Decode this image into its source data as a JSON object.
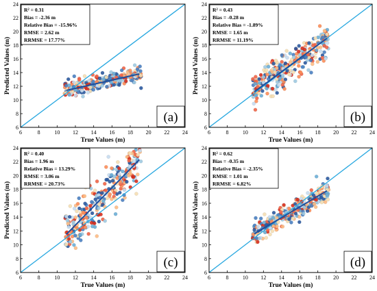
{
  "chart_data": [
    {
      "type": "scatter",
      "panel_label": "(a)",
      "xlabel": "True Values (m)",
      "ylabel": "Predicted Values (m)",
      "xlim": [
        6,
        24
      ],
      "ylim": [
        6,
        24
      ],
      "xticks": [
        "6",
        "8",
        "10",
        "12",
        "14",
        "16",
        "18",
        "20",
        "22",
        "24"
      ],
      "yticks": [
        "6",
        "8",
        "10",
        "12",
        "14",
        "16",
        "18",
        "20",
        "22",
        "24"
      ],
      "stats": [
        "R² = 0.31",
        "Bias = -2.36 m",
        "Relative Bias = -15.96%",
        "RMSE = 2.62 m",
        "RRMSE = 17.77%"
      ],
      "one_to_one": [
        [
          6,
          6
        ],
        [
          24,
          24
        ]
      ],
      "fit_line": [
        [
          11,
          11.4
        ],
        [
          19,
          13.8
        ]
      ],
      "point_cloud": {
        "x_range": [
          10.8,
          19.2
        ],
        "y_center": [
          11.4,
          13.8
        ],
        "y_spread": 1.4,
        "count": 300
      }
    },
    {
      "type": "scatter",
      "panel_label": "(b)",
      "xlabel": "True Values (m)",
      "ylabel": "Predicted Values (m)",
      "xlim": [
        6,
        24
      ],
      "ylim": [
        6,
        24
      ],
      "xticks": [
        "6",
        "8",
        "10",
        "12",
        "14",
        "16",
        "18",
        "20",
        "22",
        "24"
      ],
      "yticks": [
        "6",
        "8",
        "10",
        "12",
        "14",
        "16",
        "18",
        "20",
        "22",
        "24"
      ],
      "stats": [
        "R² = 0.43",
        "Bias = -0.28 m",
        "Relative Bias = -1.89%",
        "RMSE = 1.65 m",
        "RRMSE = 11.19%"
      ],
      "one_to_one": [
        [
          6,
          6
        ],
        [
          24,
          24
        ]
      ],
      "fit_line": [
        [
          11,
          11.2
        ],
        [
          19,
          19
        ]
      ],
      "point_cloud": {
        "x_range": [
          10.8,
          19.2
        ],
        "y_center": [
          11.2,
          19.0
        ],
        "y_spread": 3.0,
        "count": 300
      }
    },
    {
      "type": "scatter",
      "panel_label": "(c)",
      "xlabel": "True Values (m)",
      "ylabel": "Predicted Values (m)",
      "xlim": [
        6,
        24
      ],
      "ylim": [
        6,
        24
      ],
      "xticks": [
        "6",
        "8",
        "10",
        "12",
        "14",
        "16",
        "18",
        "20",
        "22",
        "24"
      ],
      "yticks": [
        "6",
        "8",
        "10",
        "12",
        "14",
        "16",
        "18",
        "20",
        "22",
        "24"
      ],
      "stats": [
        "R² = 0.40",
        "Bias = 1.96 m",
        "Relative Bias = 13.29%",
        "RMSE = 3.06 m",
        "RRMSE = 20.73%"
      ],
      "one_to_one": [
        [
          6,
          6
        ],
        [
          24,
          24
        ]
      ],
      "fit_line": [
        [
          11,
          11.5
        ],
        [
          19,
          22.3
        ]
      ],
      "point_cloud": {
        "x_range": [
          10.8,
          19.2
        ],
        "y_center": [
          11.5,
          22.3
        ],
        "y_spread": 4.0,
        "count": 300
      }
    },
    {
      "type": "scatter",
      "panel_label": "(d)",
      "xlabel": "True Values (m)",
      "ylabel": "Predicted Values (m)",
      "xlim": [
        6,
        24
      ],
      "ylim": [
        6,
        24
      ],
      "xticks": [
        "6",
        "8",
        "10",
        "12",
        "14",
        "16",
        "18",
        "20",
        "22",
        "24"
      ],
      "yticks": [
        "6",
        "8",
        "10",
        "12",
        "14",
        "16",
        "18",
        "20",
        "22",
        "24"
      ],
      "stats": [
        "R² = 0.62",
        "Bias = -0.35 m",
        "Relative Bias = -2.35%",
        "RMSE = 1.01 m",
        "RRMSE = 6.82%"
      ],
      "one_to_one": [
        [
          6,
          6
        ],
        [
          24,
          24
        ]
      ],
      "fit_line": [
        [
          11,
          11.6
        ],
        [
          19,
          17.8
        ]
      ],
      "point_cloud": {
        "x_range": [
          10.8,
          19.2
        ],
        "y_center": [
          11.6,
          17.8
        ],
        "y_spread": 2.0,
        "count": 300
      }
    }
  ],
  "colors": {
    "one_to_one_line": "#29a8e0",
    "fit_line": "#1f4e9c",
    "point_palette": [
      "#d7301f",
      "#ef6548",
      "#fc8d59",
      "#fdbb84",
      "#f5deb3",
      "#c6dbef",
      "#9ecae1",
      "#6baed6",
      "#4a7fc1",
      "#2c5aa0"
    ]
  }
}
